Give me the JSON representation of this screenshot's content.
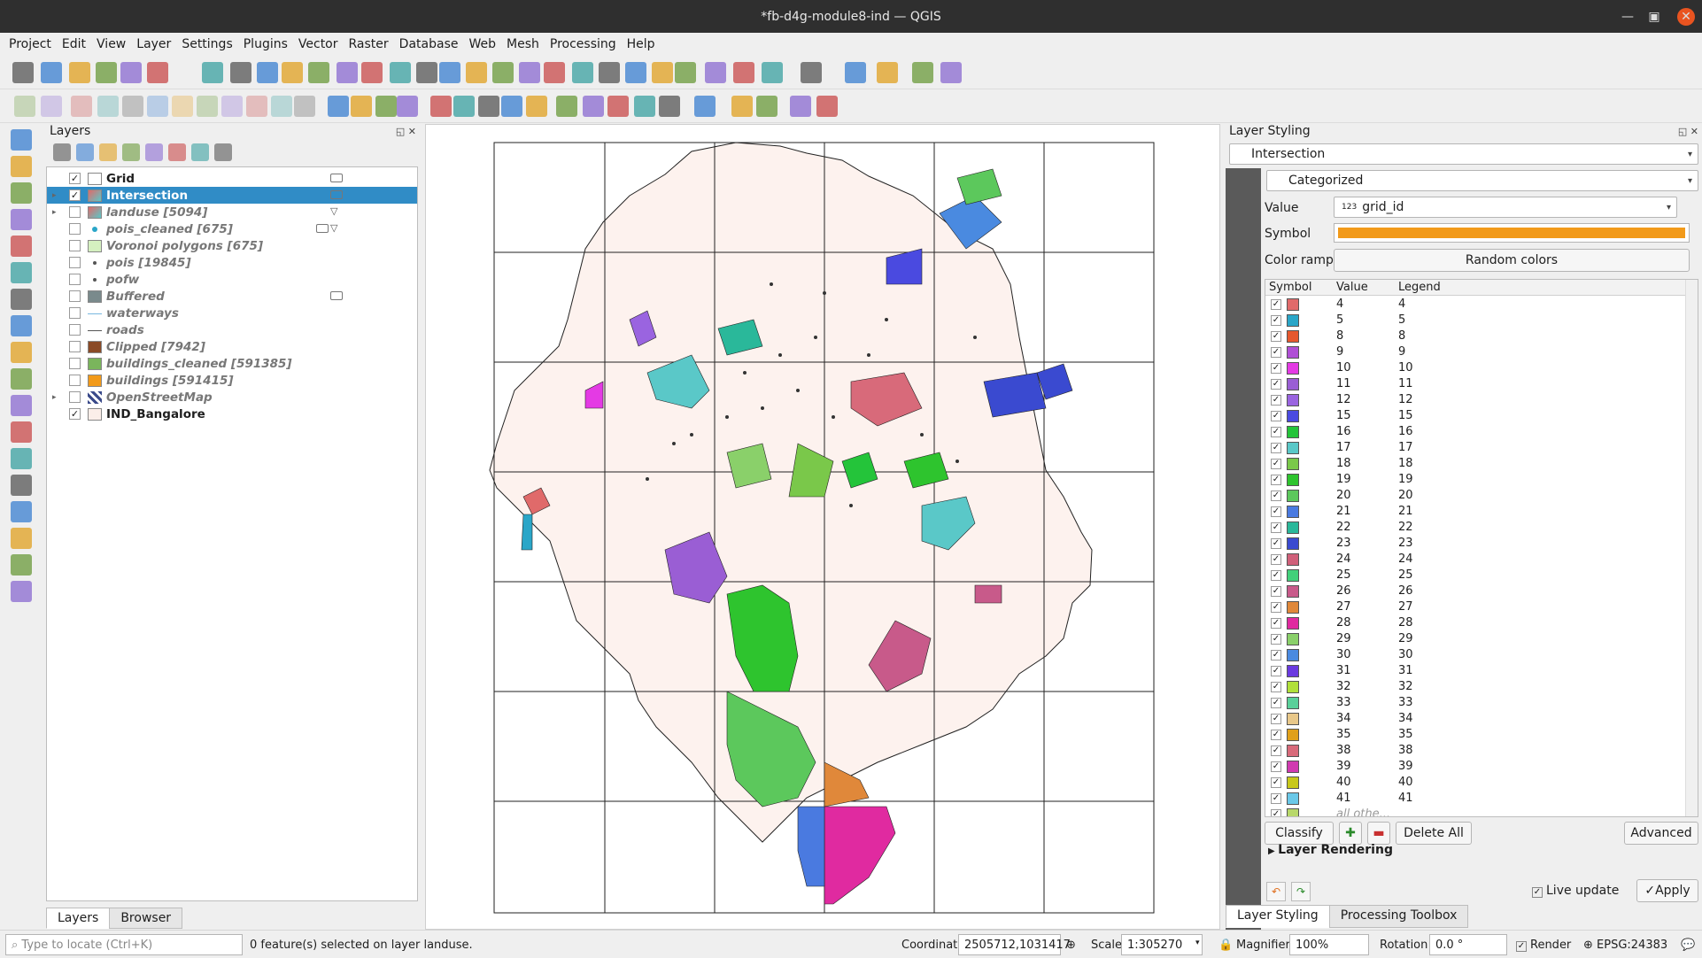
{
  "window": {
    "title": "*fb-d4g-module8-ind — QGIS"
  },
  "menu": [
    "Project",
    "Edit",
    "View",
    "Layer",
    "Settings",
    "Plugins",
    "Vector",
    "Raster",
    "Database",
    "Web",
    "Mesh",
    "Processing",
    "Help"
  ],
  "layers_panel": {
    "title": "Layers",
    "items": [
      {
        "name": "Grid",
        "checked": "✓",
        "style": "b",
        "sym": "#ffffff",
        "expand": ""
      },
      {
        "name": "Intersection",
        "checked": "✓",
        "style": "b",
        "sym": "poly-cat",
        "expand": "▸",
        "selected": true
      },
      {
        "name": "landuse [5094]",
        "checked": "",
        "style": "i",
        "sym": "poly-cat",
        "expand": "▸"
      },
      {
        "name": "pois_cleaned [675]",
        "checked": "",
        "style": "i",
        "sym": "point",
        "expand": ""
      },
      {
        "name": "Voronoi polygons [675]",
        "checked": "",
        "style": "i",
        "sym": "#d5f0c0",
        "expand": ""
      },
      {
        "name": "pois [19845]",
        "checked": "",
        "style": "i",
        "sym": "dot",
        "expand": ""
      },
      {
        "name": "pofw",
        "checked": "",
        "style": "i",
        "sym": "dot",
        "expand": ""
      },
      {
        "name": "Buffered",
        "checked": "",
        "style": "i",
        "sym": "#7a8a8c",
        "expand": ""
      },
      {
        "name": "waterways",
        "checked": "",
        "style": "i",
        "sym": "line-blue",
        "expand": ""
      },
      {
        "name": "roads",
        "checked": "",
        "style": "i",
        "sym": "line-gray",
        "expand": ""
      },
      {
        "name": "Clipped [7942]",
        "checked": "",
        "style": "i",
        "sym": "#8a4a26",
        "expand": ""
      },
      {
        "name": "buildings_cleaned [591385]",
        "checked": "",
        "style": "i",
        "sym": "#7ab55c",
        "expand": ""
      },
      {
        "name": "buildings [591415]",
        "checked": "",
        "style": "i",
        "sym": "#f29a1a",
        "expand": ""
      },
      {
        "name": "OpenStreetMap",
        "checked": "",
        "style": "i",
        "sym": "raster",
        "expand": "▸"
      },
      {
        "name": "IND_Bangalore",
        "checked": "✓",
        "style": "b",
        "sym": "#fbeee9",
        "expand": ""
      }
    ],
    "tabs": [
      "Layers",
      "Browser"
    ]
  },
  "styling": {
    "title": "Layer Styling",
    "layer": "Intersection",
    "renderer": "Categorized",
    "value_label": "Value",
    "value": "grid_id",
    "value_prefix": "123",
    "symbol_label": "Symbol",
    "symbol_color": "#f29a1a",
    "ramp_label": "Color ramp",
    "ramp": "Random colors",
    "col_symbol": "Symbol",
    "col_value": "Value",
    "col_legend": "Legend",
    "categories": [
      {
        "v": "4",
        "c": "#e06a6a"
      },
      {
        "v": "5",
        "c": "#2aa6c8"
      },
      {
        "v": "8",
        "c": "#e6582e"
      },
      {
        "v": "9",
        "c": "#b04fd6"
      },
      {
        "v": "10",
        "c": "#e43ae4"
      },
      {
        "v": "11",
        "c": "#9a5ed4"
      },
      {
        "v": "12",
        "c": "#9a64e0"
      },
      {
        "v": "15",
        "c": "#4a4ae0"
      },
      {
        "v": "16",
        "c": "#24c43a"
      },
      {
        "v": "17",
        "c": "#5ac8c8"
      },
      {
        "v": "18",
        "c": "#7ac84a"
      },
      {
        "v": "19",
        "c": "#2ec42e"
      },
      {
        "v": "20",
        "c": "#5cc85c"
      },
      {
        "v": "21",
        "c": "#4a7ae0"
      },
      {
        "v": "22",
        "c": "#2ab89a"
      },
      {
        "v": "23",
        "c": "#3a4ad0"
      },
      {
        "v": "24",
        "c": "#d0607a"
      },
      {
        "v": "25",
        "c": "#42d07a"
      },
      {
        "v": "26",
        "c": "#c85a8a"
      },
      {
        "v": "27",
        "c": "#e0883a"
      },
      {
        "v": "28",
        "c": "#e02aa0"
      },
      {
        "v": "29",
        "c": "#8ad06a"
      },
      {
        "v": "30",
        "c": "#4a8ae0"
      },
      {
        "v": "31",
        "c": "#6a3ae0"
      },
      {
        "v": "32",
        "c": "#b0e03a"
      },
      {
        "v": "33",
        "c": "#5ad09a"
      },
      {
        "v": "34",
        "c": "#e8c88a"
      },
      {
        "v": "35",
        "c": "#e0a01a"
      },
      {
        "v": "38",
        "c": "#d86a7a"
      },
      {
        "v": "39",
        "c": "#d03ab0"
      },
      {
        "v": "40",
        "c": "#c8c81a"
      },
      {
        "v": "41",
        "c": "#6ac8e8"
      }
    ],
    "all_other": "all othe...",
    "all_other_color": "#b8d86a",
    "classify": "Classify",
    "delete_all": "Delete All",
    "advanced": "Advanced",
    "layer_rendering": "Layer Rendering",
    "live_update": "Live update",
    "apply": "Apply",
    "tabs": [
      "Layer Styling",
      "Processing Toolbox"
    ]
  },
  "status": {
    "locate_placeholder": "Type to locate (Ctrl+K)",
    "message": "0 feature(s) selected on layer landuse.",
    "coord_label": "Coordinate",
    "coord": "2505712,1031417",
    "scale_label": "Scale",
    "scale": "1:305270",
    "magnifier_label": "Magnifier",
    "magnifier": "100%",
    "rotation_label": "Rotation",
    "rotation": "0.0 °",
    "render": "Render",
    "crs": "EPSG:24383"
  }
}
